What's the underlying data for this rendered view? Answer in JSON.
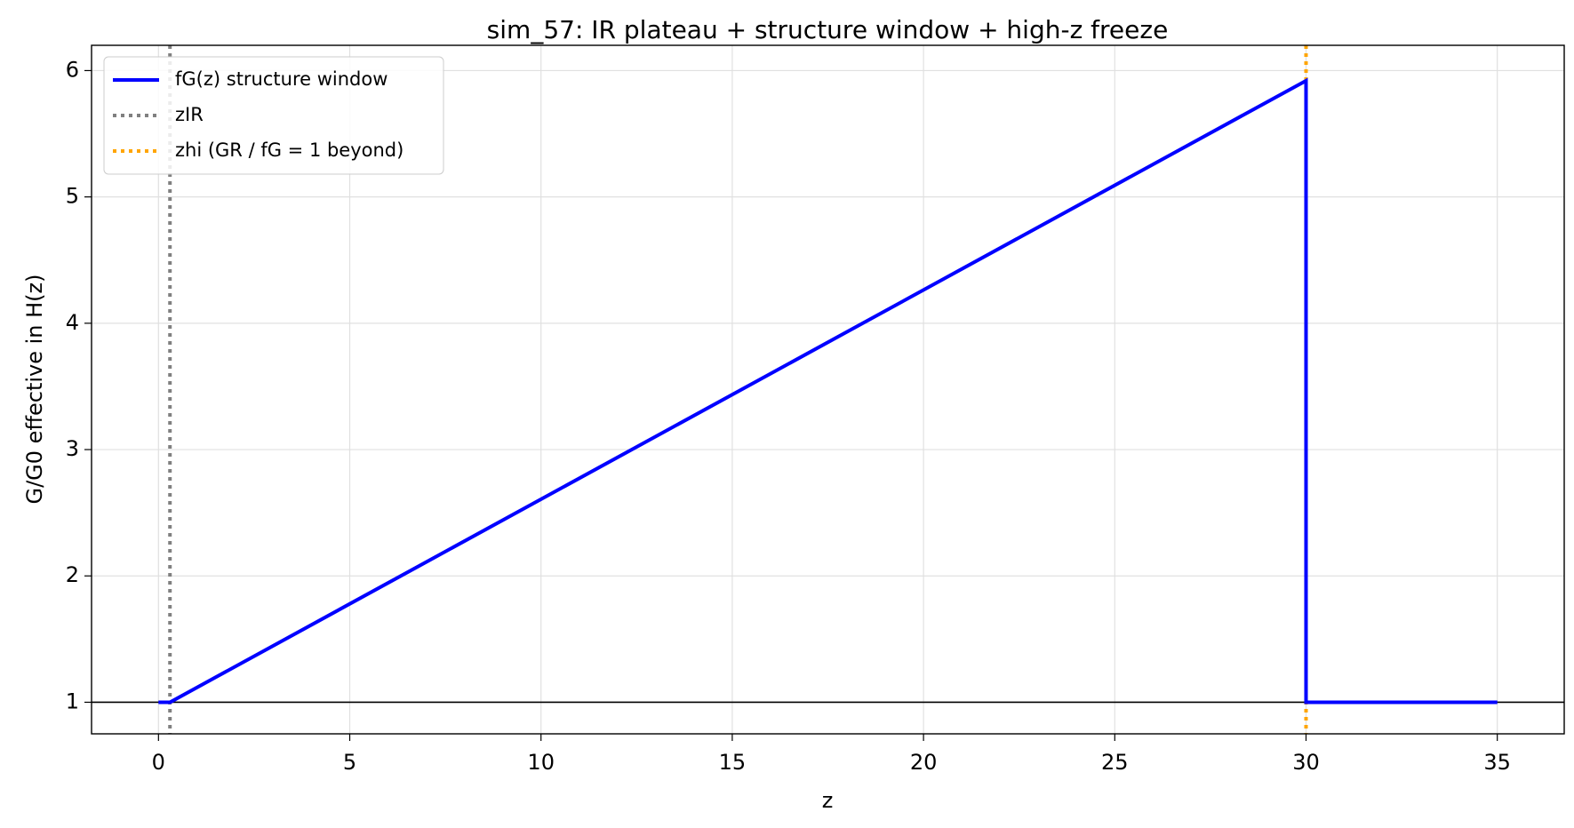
{
  "chart_data": {
    "type": "line",
    "title": "sim_57: IR plateau + structure window + high-z freeze",
    "x_label": "z",
    "y_label": "G/G0 effective in H(z)",
    "x": [
      0,
      0.3,
      30,
      30,
      35
    ],
    "series": [
      {
        "name": "fG(z) structure window",
        "color": "#0000ff",
        "values": [
          1,
          1,
          5.92,
          1,
          1
        ]
      }
    ],
    "reference_lines": [
      {
        "name": "zIR",
        "x": 0.3,
        "color": "#808080"
      },
      {
        "name": "zhi (GR / fG = 1 beyond)",
        "x": 30,
        "color": "#ffa500"
      }
    ],
    "hline": 1,
    "xlim": [
      -1.75,
      36.75
    ],
    "xticks": [
      0,
      5,
      10,
      15,
      20,
      25,
      30,
      35
    ],
    "ylim": [
      0.75,
      6.2
    ],
    "yticks": [
      1,
      2,
      3,
      4,
      5,
      6
    ],
    "grid": true,
    "legend": "upper left"
  }
}
